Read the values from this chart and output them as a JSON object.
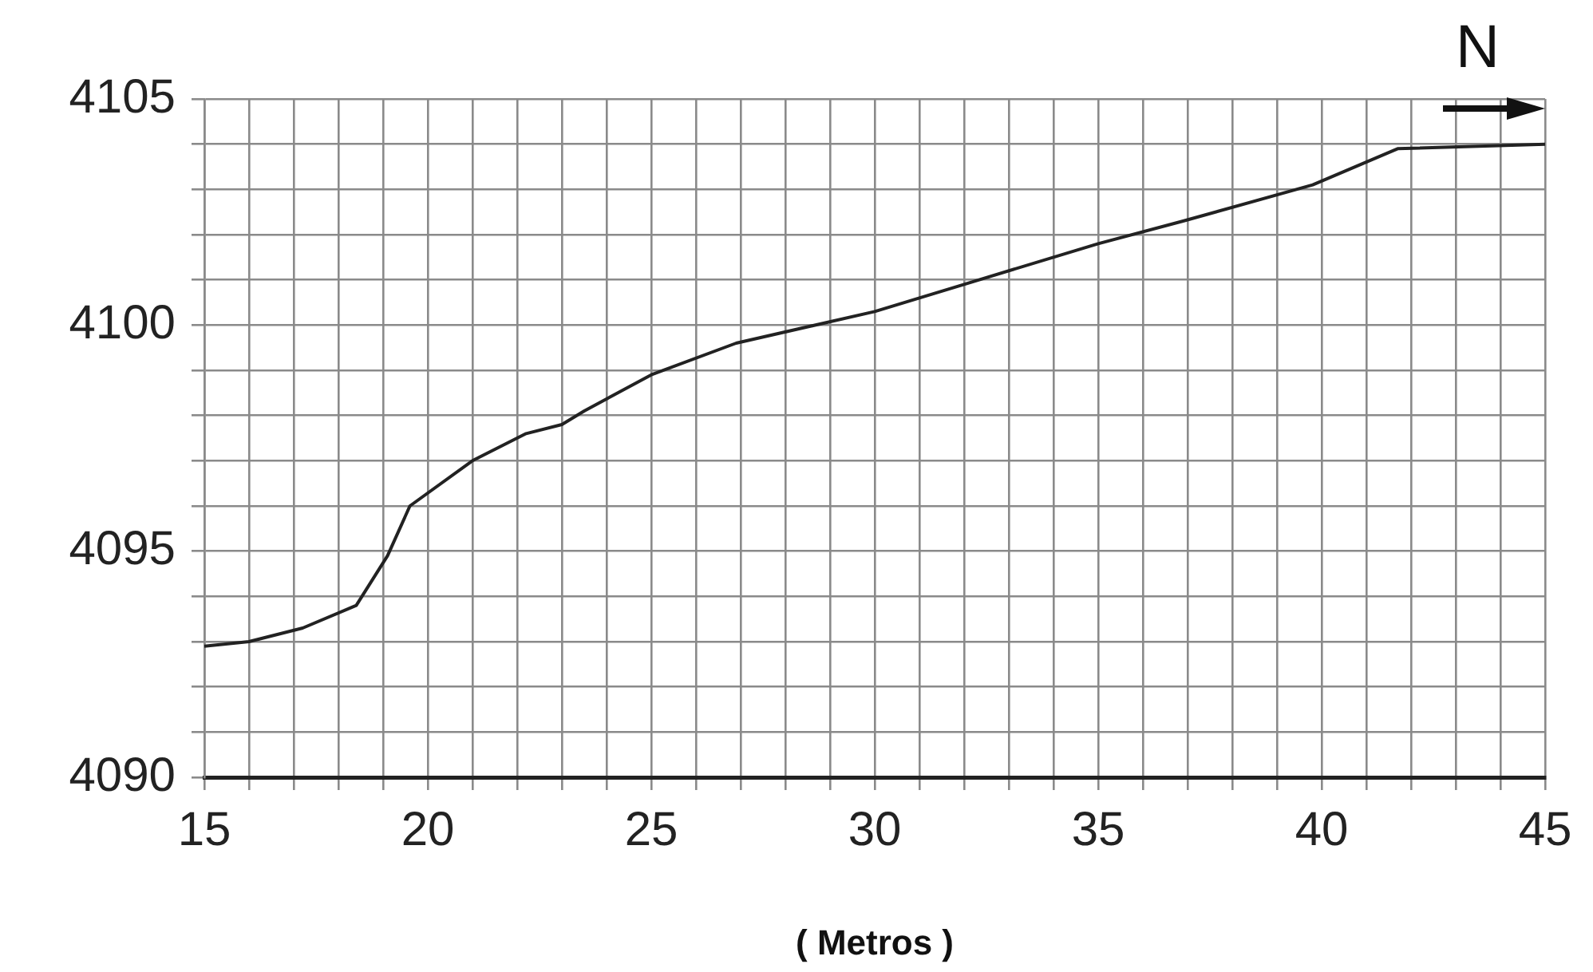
{
  "chart_data": {
    "type": "line",
    "xlabel": "( Metros )",
    "annotations": [
      "N"
    ],
    "x": [
      15,
      16,
      17.2,
      18.4,
      19.1,
      19.6,
      21,
      22.2,
      23,
      23.5,
      25,
      26.9,
      30,
      32,
      35,
      36.9,
      39.8,
      41.7,
      45
    ],
    "series": [
      {
        "color": "#222222",
        "values": [
          4092.9,
          4093,
          4093.3,
          4093.8,
          4094.9,
          4096,
          4097,
          4097.6,
          4097.8,
          4098.1,
          4098.9,
          4099.6,
          4100.3,
          4100.9,
          4101.8,
          4102.3,
          4103.1,
          4103.9,
          4104
        ]
      }
    ],
    "xlim": [
      15,
      45
    ],
    "ylim": [
      4090,
      4105
    ],
    "xticks": [
      15,
      {
        "value": 16,
        "label": null
      },
      {
        "value": 17,
        "label": null
      },
      {
        "value": 18,
        "label": null
      },
      {
        "value": 19,
        "label": null
      },
      20,
      {
        "value": 21,
        "label": null
      },
      {
        "value": 22,
        "label": null
      },
      {
        "value": 23,
        "label": null
      },
      {
        "value": 24,
        "label": null
      },
      25,
      {
        "value": 26,
        "label": null
      },
      {
        "value": 27,
        "label": null
      },
      {
        "value": 28,
        "label": null
      },
      {
        "value": 29,
        "label": null
      },
      30,
      {
        "value": 31,
        "label": null
      },
      {
        "value": 32,
        "label": null
      },
      {
        "value": 33,
        "label": null
      },
      {
        "value": 34,
        "label": null
      },
      35,
      {
        "value": 36,
        "label": null
      },
      {
        "value": 37,
        "label": null
      },
      {
        "value": 38,
        "label": null
      },
      {
        "value": 39,
        "label": null
      },
      40,
      {
        "value": 41,
        "label": null
      },
      {
        "value": 42,
        "label": null
      },
      {
        "value": 43,
        "label": null
      },
      {
        "value": 44,
        "label": null
      },
      45
    ],
    "yticks": [
      4090,
      {
        "value": 4091,
        "label": null
      },
      {
        "value": 4092,
        "label": null
      },
      {
        "value": 4093,
        "label": null
      },
      {
        "value": 4094,
        "label": null
      },
      4095,
      {
        "value": 4096,
        "label": null
      },
      {
        "value": 4097,
        "label": null
      },
      {
        "value": 4098,
        "label": null
      },
      {
        "value": 4099,
        "label": null
      },
      4100,
      {
        "value": 4101,
        "label": null
      },
      {
        "value": 4102,
        "label": null
      },
      {
        "value": 4103,
        "label": null
      },
      {
        "value": 4104,
        "label": null
      },
      4105
    ],
    "grid": true,
    "legend": false,
    "marker": "none",
    "line_style": "solid"
  }
}
